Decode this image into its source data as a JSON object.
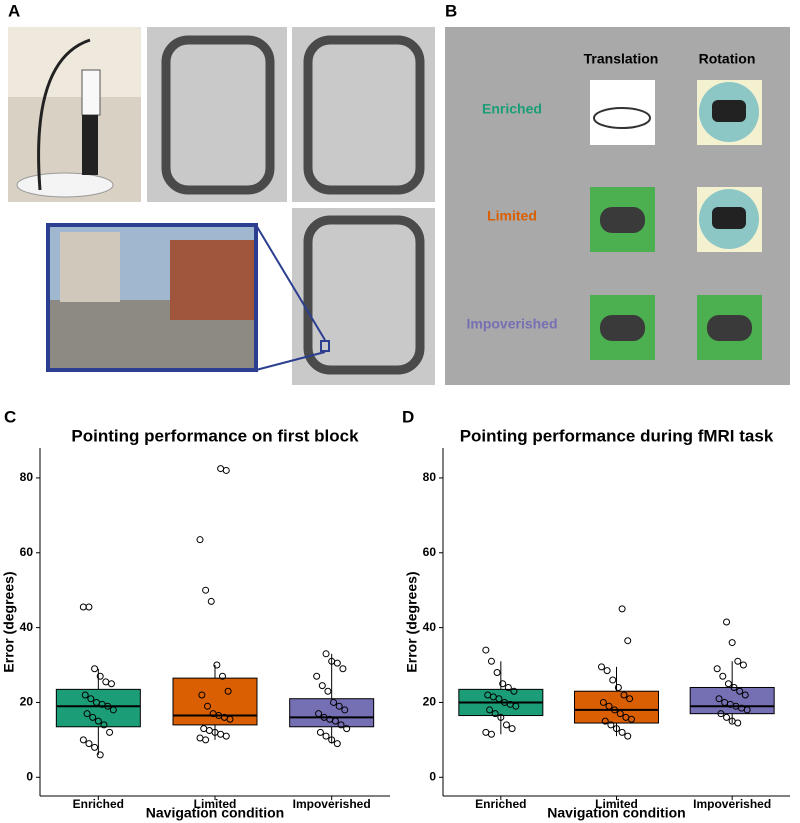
{
  "panel_labels": [
    "A",
    "B",
    "C",
    "D"
  ],
  "conditions_table": {
    "columns": [
      "Translation",
      "Rotation"
    ],
    "rows": [
      "Enriched",
      "Limited",
      "Impoverished"
    ],
    "row_colors": [
      "#1b9e77",
      "#d95f02",
      "#7570b3"
    ]
  },
  "chart_data": [
    {
      "type": "boxplot",
      "title": "Pointing performance on first block",
      "xlabel": "Navigation condition",
      "ylabel": "Error (degrees)",
      "categories": [
        "Enriched",
        "Limited",
        "Impoverished"
      ],
      "colors": [
        "#1b9e77",
        "#d95f02",
        "#7570b3"
      ],
      "ylim": [
        -5,
        88
      ],
      "yticks": [
        0,
        20,
        40,
        60,
        80
      ],
      "boxes": [
        {
          "whisker_low": 6,
          "q1": 13.5,
          "median": 19,
          "q3": 23.5,
          "whisker_high": 29
        },
        {
          "whisker_low": 10,
          "q1": 14,
          "median": 16.5,
          "q3": 26.5,
          "whisker_high": 30
        },
        {
          "whisker_low": 9,
          "q1": 13.5,
          "median": 16,
          "q3": 21,
          "whisker_high": 33
        }
      ],
      "points": [
        [
          45.5,
          45.5,
          29,
          27,
          25.5,
          25,
          22,
          21,
          20,
          19.5,
          19,
          18,
          17,
          16,
          15,
          14,
          12,
          10,
          9,
          8,
          6
        ],
        [
          82.5,
          82,
          63.5,
          50,
          47,
          30,
          27,
          23,
          22,
          19,
          17,
          16.5,
          16,
          15.5,
          13,
          12.5,
          12,
          11.5,
          11,
          10.5,
          10
        ],
        [
          33,
          31,
          30.5,
          29,
          27,
          24.5,
          23,
          20,
          19,
          18,
          17,
          16,
          15.5,
          15,
          14,
          13,
          12,
          11,
          10,
          9
        ]
      ]
    },
    {
      "type": "boxplot",
      "title": "Pointing performance during fMRI task",
      "xlabel": "Navigation condition",
      "ylabel": "Error (degrees)",
      "categories": [
        "Enriched",
        "Limited",
        "Impoverished"
      ],
      "colors": [
        "#1b9e77",
        "#d95f02",
        "#7570b3"
      ],
      "ylim": [
        -5,
        88
      ],
      "yticks": [
        0,
        20,
        40,
        60,
        80
      ],
      "boxes": [
        {
          "whisker_low": 11.5,
          "q1": 16.5,
          "median": 20,
          "q3": 23.5,
          "whisker_high": 31
        },
        {
          "whisker_low": 11,
          "q1": 14.5,
          "median": 18,
          "q3": 23,
          "whisker_high": 29.5
        },
        {
          "whisker_low": 14.5,
          "q1": 17,
          "median": 19,
          "q3": 24,
          "whisker_high": 31
        }
      ],
      "points": [
        [
          34,
          31,
          28,
          25,
          24,
          23,
          22,
          21.5,
          21,
          20,
          19.5,
          19,
          18,
          17,
          16,
          14,
          13,
          12,
          11.5
        ],
        [
          45,
          36.5,
          29.5,
          28.5,
          26,
          24,
          22,
          21,
          20,
          19,
          18,
          17,
          16,
          15.5,
          15,
          14,
          13,
          12,
          11
        ],
        [
          41.5,
          36,
          31,
          30,
          29,
          27,
          25,
          24,
          23,
          22,
          21,
          20,
          19.5,
          19,
          18.5,
          18,
          17,
          16,
          15,
          14.5
        ]
      ]
    }
  ]
}
